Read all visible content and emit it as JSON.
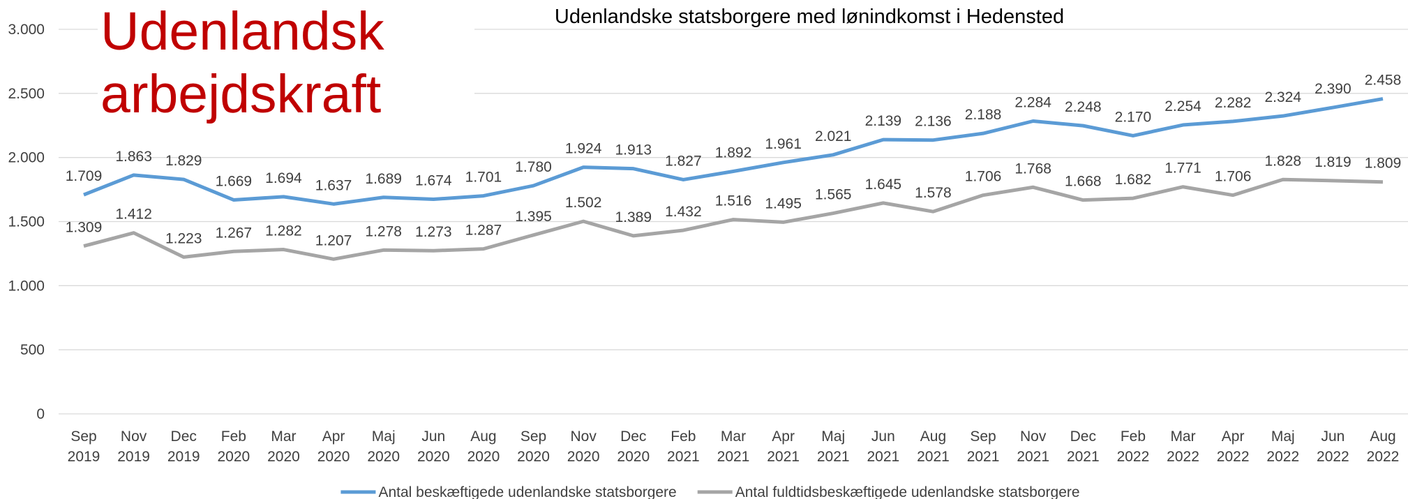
{
  "chart_data": {
    "type": "line",
    "title": "Udenlandske statsborgere med lønindkomst i Hedensted",
    "heading": "Udenlandsk arbejdskraft",
    "categories": [
      "Sep 2019",
      "Nov 2019",
      "Dec 2019",
      "Feb 2020",
      "Mar 2020",
      "Apr 2020",
      "Maj 2020",
      "Jun 2020",
      "Aug 2020",
      "Sep 2020",
      "Nov 2020",
      "Dec 2020",
      "Feb 2021",
      "Mar 2021",
      "Apr 2021",
      "Maj 2021",
      "Jun 2021",
      "Aug 2021",
      "Sep 2021",
      "Nov 2021",
      "Dec 2021",
      "Feb 2022",
      "Mar 2022",
      "Apr 2022",
      "Maj 2022",
      "Jun 2022",
      "Aug 2022"
    ],
    "series": [
      {
        "name": "Antal beskæftigede udenlandske statsborgere",
        "color": "#5b9bd5",
        "values": [
          1709,
          1863,
          1829,
          1669,
          1694,
          1637,
          1689,
          1674,
          1701,
          1780,
          1924,
          1913,
          1827,
          1892,
          1961,
          2021,
          2139,
          2136,
          2188,
          2284,
          2248,
          2170,
          2254,
          2282,
          2324,
          2390,
          2458
        ],
        "value_labels": [
          "1.709",
          "1.863",
          "1.829",
          "1.669",
          "1.694",
          "1.637",
          "1.689",
          "1.674",
          "1.701",
          "1.780",
          "1.924",
          "1.913",
          "1.827",
          "1.892",
          "1.961",
          "2.021",
          "2.139",
          "2.136",
          "2.188",
          "2.284",
          "2.248",
          "2.170",
          "2.254",
          "2.282",
          "2.324",
          "2.390",
          "2.458"
        ]
      },
      {
        "name": "Antal fuldtidsbeskæftigede udenlandske statsborgere",
        "color": "#a5a5a5",
        "values": [
          1309,
          1412,
          1223,
          1267,
          1282,
          1207,
          1278,
          1273,
          1287,
          1395,
          1502,
          1389,
          1432,
          1516,
          1495,
          1565,
          1645,
          1578,
          1706,
          1768,
          1668,
          1682,
          1771,
          1706,
          1828,
          1819,
          1809
        ],
        "value_labels": [
          "1.309",
          "1.412",
          "1.223",
          "1.267",
          "1.282",
          "1.207",
          "1.278",
          "1.273",
          "1.287",
          "1.395",
          "1.502",
          "1.389",
          "1.432",
          "1.516",
          "1.495",
          "1.565",
          "1.645",
          "1.578",
          "1.706",
          "1.768",
          "1.668",
          "1.682",
          "1.771",
          "1.706",
          "1.828",
          "1.819",
          "1.809"
        ]
      }
    ],
    "ylim": [
      0,
      3000
    ],
    "yticks": [
      0,
      500,
      {
        "value": 1000,
        "label": "1.000"
      },
      {
        "value": 1500,
        "label": "1.500"
      },
      {
        "value": 2000,
        "label": "2.000"
      },
      {
        "value": 2500,
        "label": "2.500"
      },
      {
        "value": 3000,
        "label": "3.000"
      }
    ],
    "grid": true,
    "legend": "bottom"
  }
}
